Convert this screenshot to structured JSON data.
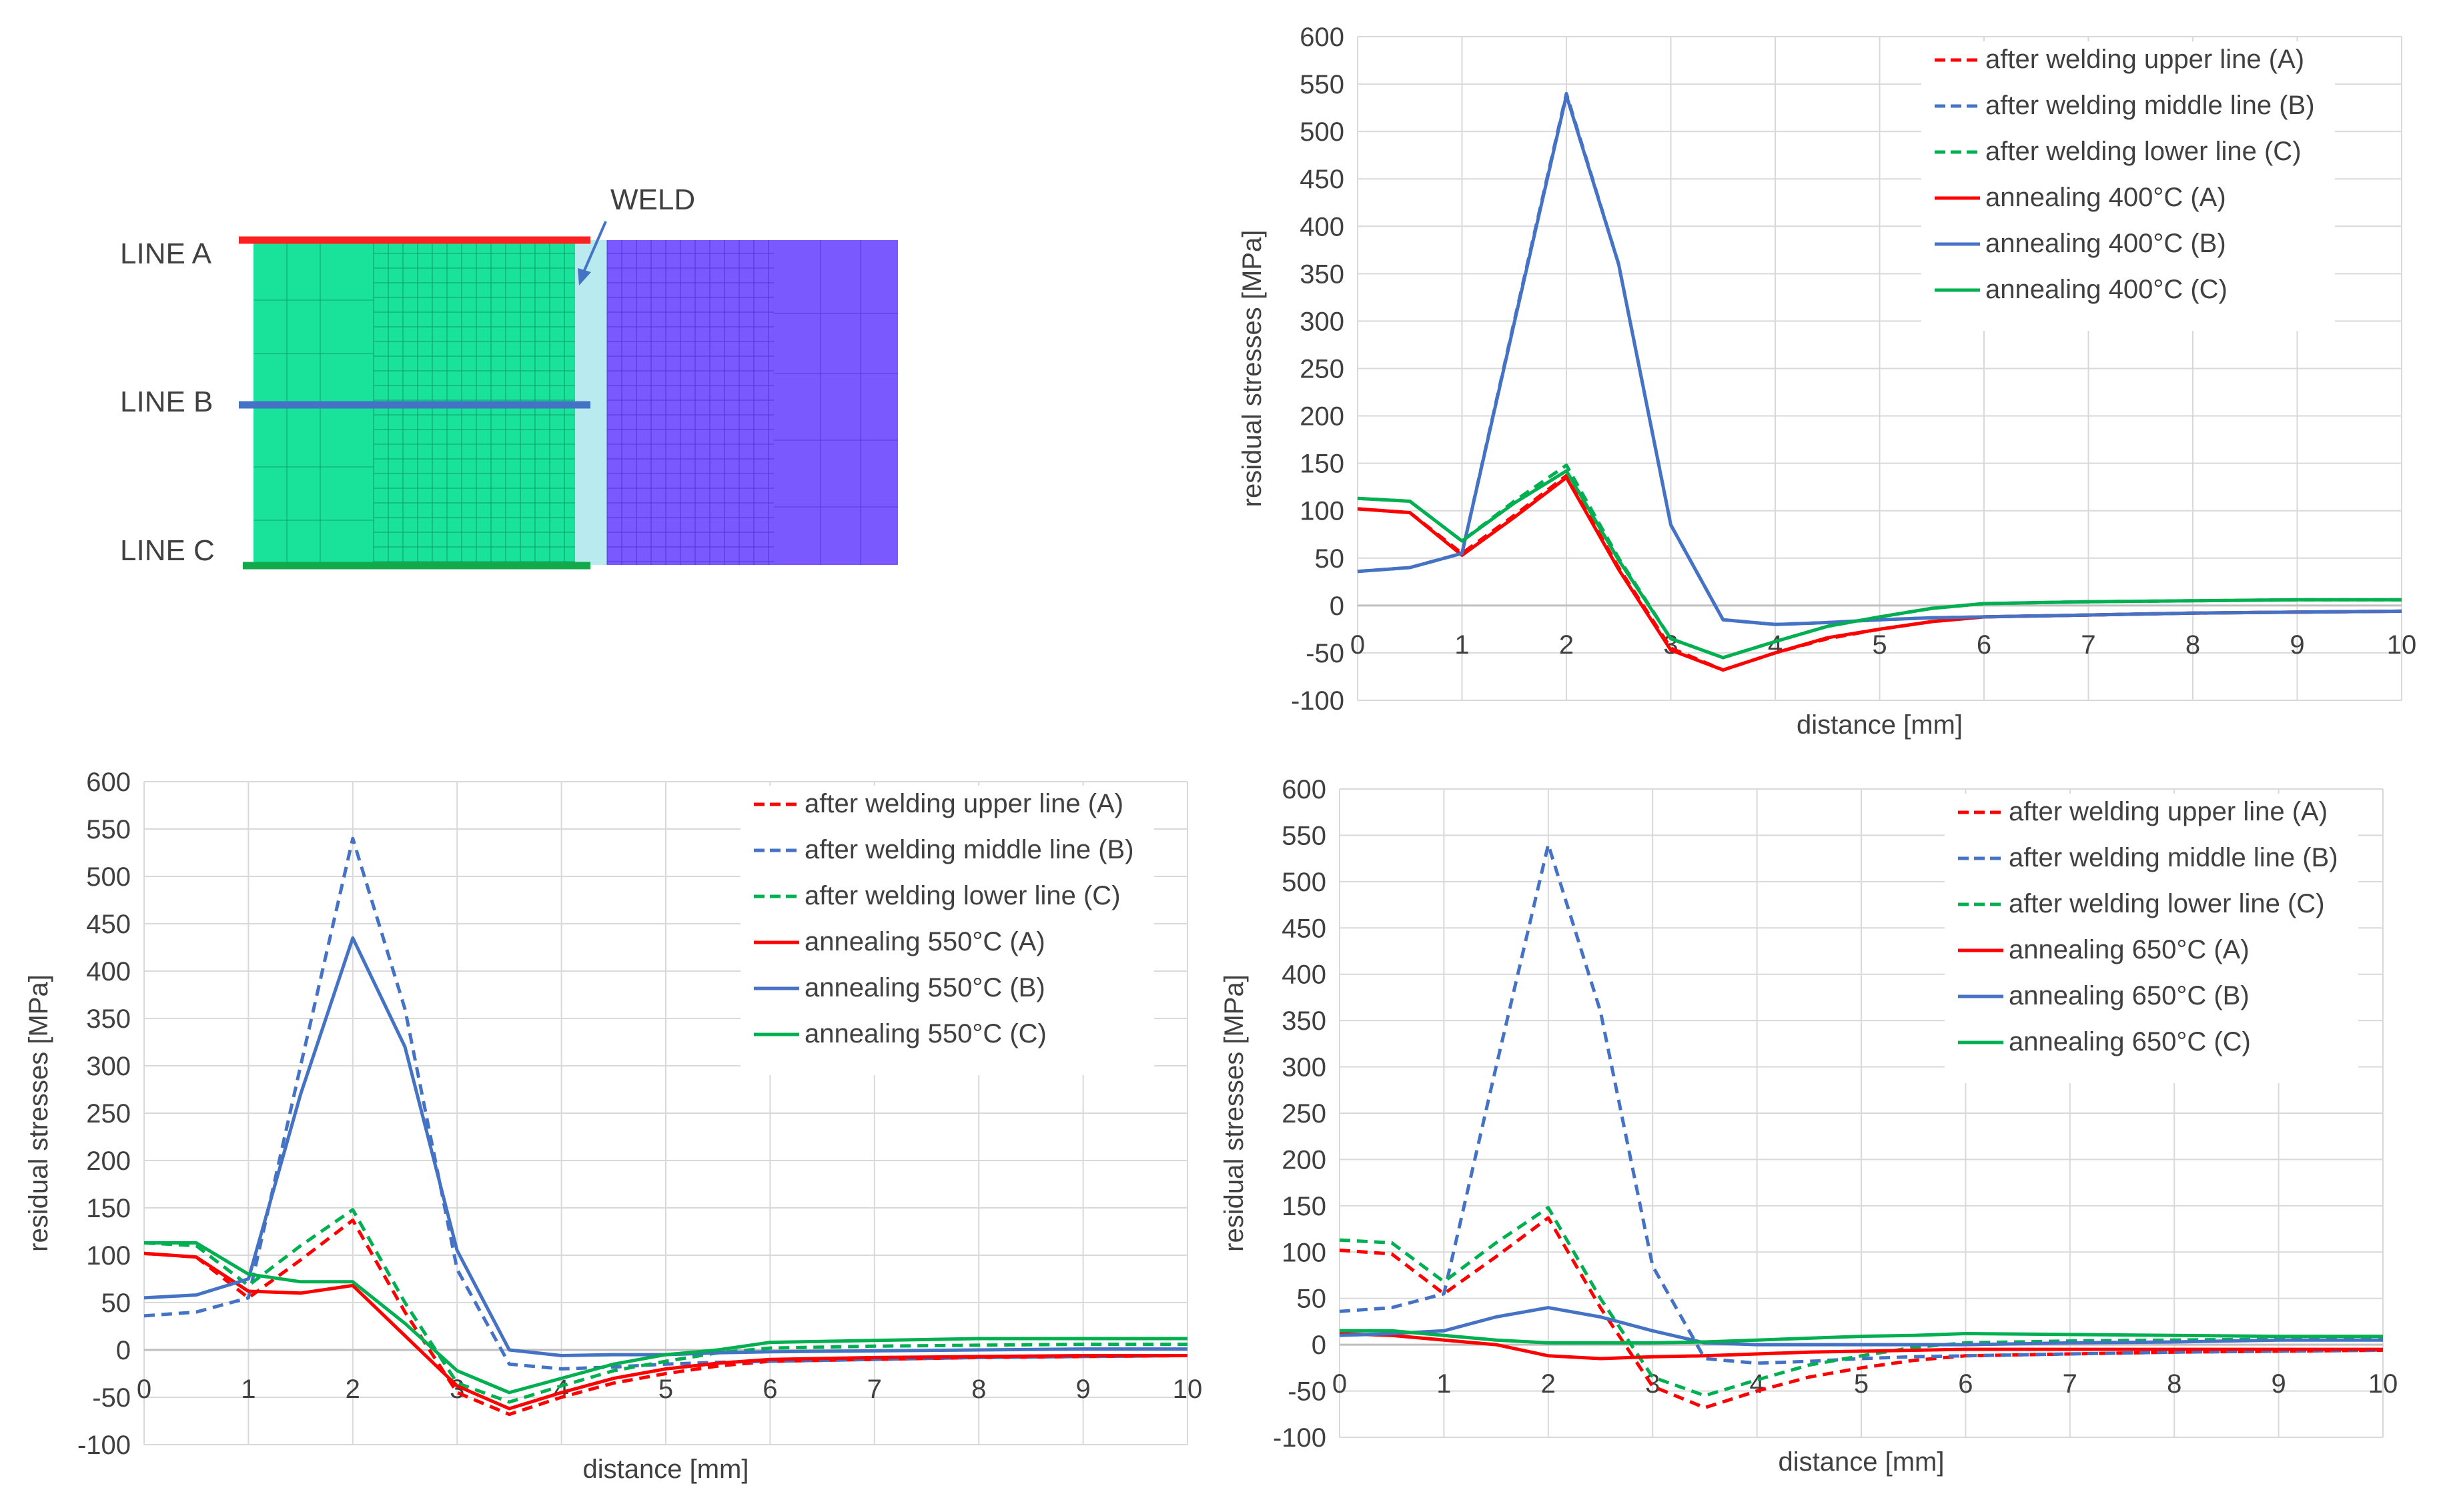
{
  "diagram": {
    "line_a_label": "LINE A",
    "line_b_label": "LINE B",
    "line_c_label": "LINE C",
    "weld_label": "WELD",
    "colors": {
      "base_left": "#19e39a",
      "weld_zone": "#b8eaf0",
      "base_right": "#7a59ff",
      "line_a": "#ff2020",
      "line_b": "#4472c4",
      "line_c": "#12a94a"
    }
  },
  "colors": {
    "red": "#ff0000",
    "blue": "#4472c4",
    "green": "#00b050"
  },
  "chart_data": [
    {
      "type": "line",
      "id": "annealing-400",
      "xlabel": "distance [mm]",
      "ylabel": "residual stresses [MPa]",
      "xlim": [
        0,
        10
      ],
      "ylim": [
        -100,
        600
      ],
      "x_ticks": [
        0,
        1,
        2,
        3,
        4,
        5,
        6,
        7,
        8,
        9,
        10
      ],
      "y_ticks": [
        -100,
        -50,
        0,
        50,
        100,
        150,
        200,
        250,
        300,
        350,
        400,
        450,
        500,
        550,
        600
      ],
      "grid": true,
      "legend": "top-right",
      "x": [
        0,
        0.5,
        1,
        1.5,
        2,
        2.5,
        3,
        3.5,
        4,
        4.5,
        5,
        5.5,
        6,
        7,
        8,
        9,
        10
      ],
      "series": [
        {
          "name": "after welding upper line (A)",
          "color": "red",
          "dash": true,
          "values": [
            102,
            98,
            55,
            95,
            137,
            40,
            -45,
            -68,
            -50,
            -35,
            -25,
            -17,
            -12,
            -10,
            -8,
            -7,
            -6
          ]
        },
        {
          "name": "after welding middle line (B)",
          "color": "blue",
          "dash": true,
          "values": [
            36,
            40,
            55,
            300,
            540,
            360,
            85,
            -15,
            -20,
            -18,
            -15,
            -13,
            -12,
            -10,
            -8,
            -7,
            -6
          ]
        },
        {
          "name": "after welding lower line (C)",
          "color": "green",
          "dash": true,
          "values": [
            113,
            110,
            68,
            110,
            148,
            50,
            -35,
            -55,
            -38,
            -22,
            -12,
            -3,
            2,
            4,
            5,
            6,
            6
          ]
        },
        {
          "name": "annealing 400°C (A)",
          "color": "red",
          "dash": false,
          "values": [
            102,
            98,
            53,
            93,
            135,
            38,
            -47,
            -68,
            -50,
            -34,
            -25,
            -17,
            -12,
            -10,
            -8,
            -7,
            -6
          ]
        },
        {
          "name": "annealing 400°C (B)",
          "color": "blue",
          "dash": false,
          "values": [
            36,
            40,
            55,
            298,
            538,
            360,
            85,
            -15,
            -20,
            -18,
            -15,
            -13,
            -12,
            -10,
            -8,
            -7,
            -6
          ]
        },
        {
          "name": "annealing 400°C (C)",
          "color": "green",
          "dash": false,
          "values": [
            113,
            110,
            68,
            108,
            142,
            48,
            -35,
            -55,
            -38,
            -22,
            -12,
            -3,
            2,
            4,
            5,
            6,
            6
          ]
        }
      ]
    },
    {
      "type": "line",
      "id": "annealing-550",
      "xlabel": "distance [mm]",
      "ylabel": "residual stresses [MPa]",
      "xlim": [
        0,
        10
      ],
      "ylim": [
        -100,
        600
      ],
      "x_ticks": [
        0,
        1,
        2,
        3,
        4,
        5,
        6,
        7,
        8,
        9,
        10
      ],
      "y_ticks": [
        -100,
        -50,
        0,
        50,
        100,
        150,
        200,
        250,
        300,
        350,
        400,
        450,
        500,
        550,
        600
      ],
      "grid": true,
      "legend": "top-right",
      "x": [
        0,
        0.5,
        1,
        1.5,
        2,
        2.5,
        3,
        3.5,
        4,
        4.5,
        5,
        5.5,
        6,
        7,
        8,
        9,
        10
      ],
      "series": [
        {
          "name": "after welding upper line (A)",
          "color": "red",
          "dash": true,
          "values": [
            102,
            98,
            55,
            95,
            137,
            40,
            -45,
            -68,
            -50,
            -35,
            -25,
            -17,
            -12,
            -10,
            -8,
            -7,
            -6
          ]
        },
        {
          "name": "after welding middle line (B)",
          "color": "blue",
          "dash": true,
          "values": [
            36,
            40,
            55,
            300,
            540,
            360,
            85,
            -15,
            -20,
            -18,
            -15,
            -13,
            -12,
            -10,
            -8,
            -7,
            -6
          ]
        },
        {
          "name": "after welding lower line (C)",
          "color": "green",
          "dash": true,
          "values": [
            113,
            110,
            68,
            110,
            148,
            50,
            -35,
            -55,
            -38,
            -22,
            -12,
            -3,
            2,
            4,
            5,
            6,
            6
          ]
        },
        {
          "name": "annealing 550°C (A)",
          "color": "red",
          "dash": false,
          "values": [
            102,
            98,
            62,
            60,
            68,
            15,
            -38,
            -62,
            -45,
            -30,
            -20,
            -14,
            -10,
            -8,
            -7,
            -6,
            -6
          ]
        },
        {
          "name": "annealing 550°C (B)",
          "color": "blue",
          "dash": false,
          "values": [
            55,
            58,
            75,
            270,
            435,
            320,
            105,
            0,
            -6,
            -5,
            -5,
            -3,
            -2,
            -1,
            0,
            1,
            1
          ]
        },
        {
          "name": "annealing 550°C (C)",
          "color": "green",
          "dash": false,
          "values": [
            113,
            113,
            80,
            72,
            72,
            28,
            -22,
            -45,
            -30,
            -15,
            -5,
            0,
            8,
            10,
            12,
            12,
            12
          ]
        }
      ]
    },
    {
      "type": "line",
      "id": "annealing-650",
      "xlabel": "distance [mm]",
      "ylabel": "residual stresses [MPa]",
      "xlim": [
        0,
        10
      ],
      "ylim": [
        -100,
        600
      ],
      "x_ticks": [
        0,
        1,
        2,
        3,
        4,
        5,
        6,
        7,
        8,
        9,
        10
      ],
      "y_ticks": [
        -100,
        -50,
        0,
        50,
        100,
        150,
        200,
        250,
        300,
        350,
        400,
        450,
        500,
        550,
        600
      ],
      "grid": true,
      "legend": "top-right",
      "x": [
        0,
        0.5,
        1,
        1.5,
        2,
        2.5,
        3,
        3.5,
        4,
        4.5,
        5,
        5.5,
        6,
        7,
        8,
        9,
        10
      ],
      "series": [
        {
          "name": "after welding upper line (A)",
          "color": "red",
          "dash": true,
          "values": [
            102,
            98,
            55,
            95,
            137,
            40,
            -45,
            -68,
            -50,
            -35,
            -25,
            -17,
            -12,
            -10,
            -8,
            -7,
            -6
          ]
        },
        {
          "name": "after welding middle line (B)",
          "color": "blue",
          "dash": true,
          "values": [
            36,
            40,
            55,
            300,
            540,
            360,
            85,
            -15,
            -20,
            -18,
            -15,
            -13,
            -12,
            -10,
            -8,
            -7,
            -6
          ]
        },
        {
          "name": "after welding lower line (C)",
          "color": "green",
          "dash": true,
          "values": [
            113,
            110,
            68,
            110,
            148,
            50,
            -35,
            -55,
            -38,
            -22,
            -12,
            -3,
            2,
            4,
            5,
            6,
            6
          ]
        },
        {
          "name": "annealing 650°C (A)",
          "color": "red",
          "dash": false,
          "values": [
            12,
            10,
            5,
            0,
            -12,
            -15,
            -13,
            -12,
            -10,
            -8,
            -7,
            -6,
            -5,
            -5,
            -5,
            -5,
            -5
          ]
        },
        {
          "name": "annealing 650°C (B)",
          "color": "blue",
          "dash": false,
          "values": [
            10,
            12,
            15,
            30,
            40,
            30,
            15,
            2,
            0,
            0,
            0,
            0,
            0,
            2,
            3,
            5,
            5
          ]
        },
        {
          "name": "annealing 650°C (C)",
          "color": "green",
          "dash": false,
          "values": [
            15,
            15,
            10,
            5,
            2,
            2,
            2,
            3,
            5,
            7,
            9,
            10,
            12,
            11,
            10,
            9,
            9
          ]
        }
      ]
    }
  ]
}
